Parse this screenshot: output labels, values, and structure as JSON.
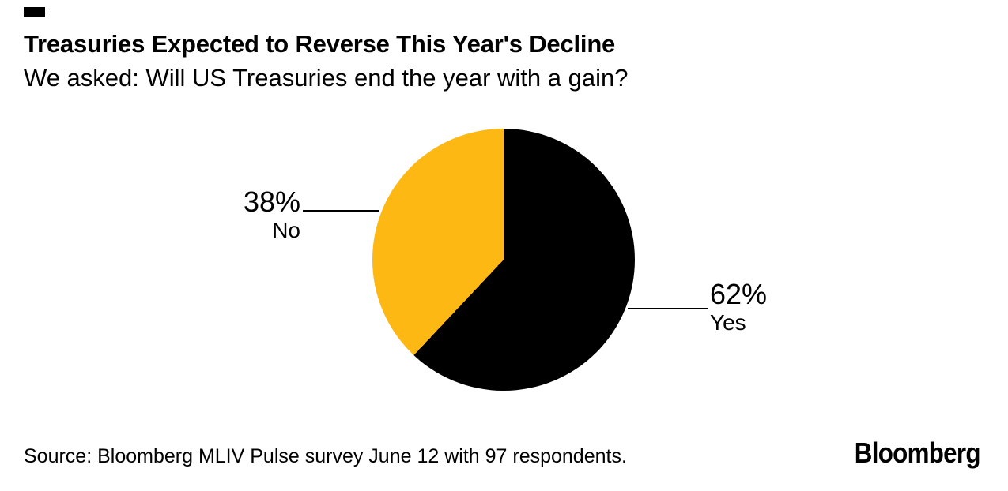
{
  "header": {
    "title": "Treasuries Expected to Reverse This Year's Decline",
    "subtitle": "We asked: Will US Treasuries end the year with a gain?"
  },
  "chart_data": {
    "type": "pie",
    "title": "Treasuries Expected to Reverse This Year's Decline",
    "subtitle": "We asked: Will US Treasuries end the year with a gain?",
    "question": "Will US Treasuries end the year with a gain?",
    "slices": [
      {
        "label": "Yes",
        "value": 62,
        "display": "62%",
        "color": "#000000"
      },
      {
        "label": "No",
        "value": 38,
        "display": "38%",
        "color": "#FDB813"
      }
    ],
    "start_angle_deg": 0,
    "direction": "clockwise",
    "legend_position": "callout-labels",
    "respondents": 97
  },
  "footer": {
    "source": "Source: Bloomberg MLIV Pulse survey June 12 with 97 respondents.",
    "brand": "Bloomberg"
  },
  "colors": {
    "background": "#FFFFFF",
    "text": "#000000",
    "yes_slice": "#000000",
    "no_slice": "#FDB813"
  }
}
